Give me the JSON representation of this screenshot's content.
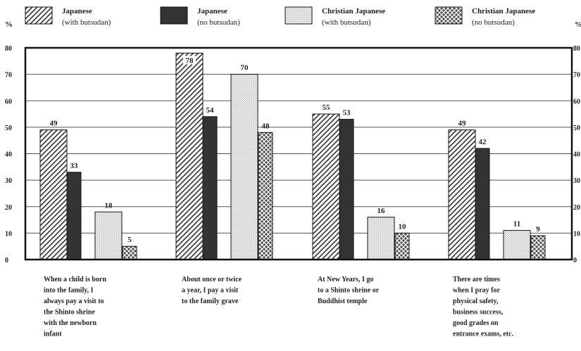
{
  "chart_data": {
    "type": "bar",
    "yunit": "%",
    "ylim": [
      0,
      80
    ],
    "yticks": [
      "0",
      "10",
      "20",
      "30",
      "40",
      "50",
      "60",
      "70",
      "80"
    ],
    "grid": true,
    "legend_position": "top",
    "series": [
      {
        "name_line1": "Japanese",
        "name_line2": "(with butsudan)",
        "pattern": "diag",
        "values": [
          49,
          78,
          55,
          49
        ]
      },
      {
        "name_line1": "Japanese",
        "name_line2": "(no butsudan)",
        "pattern": "dark",
        "values": [
          33,
          54,
          53,
          42
        ]
      },
      {
        "name_line1": "Christian Japanese",
        "name_line2": "(with butsudan)",
        "pattern": "light",
        "values": [
          18,
          70,
          16,
          11
        ]
      },
      {
        "name_line1": "Christian Japanese",
        "name_line2": "(no butsudan)",
        "pattern": "cross",
        "values": [
          5,
          48,
          10,
          9
        ]
      }
    ],
    "categories": [
      [
        "When a child is born",
        "into the family, I",
        "always pay a visit to",
        "the Shinto shrine",
        "with the newborn",
        "infant"
      ],
      [
        "About once or twice",
        "a year, I pay a visit",
        "to the family grave"
      ],
      [
        "At New Years, I go",
        "to a Shinto shrine or",
        "Buddhist temple"
      ],
      [
        "There are times",
        "when I pray for",
        "physical safety,",
        "business success,",
        "good grades on",
        "entrance exams, etc."
      ]
    ]
  }
}
